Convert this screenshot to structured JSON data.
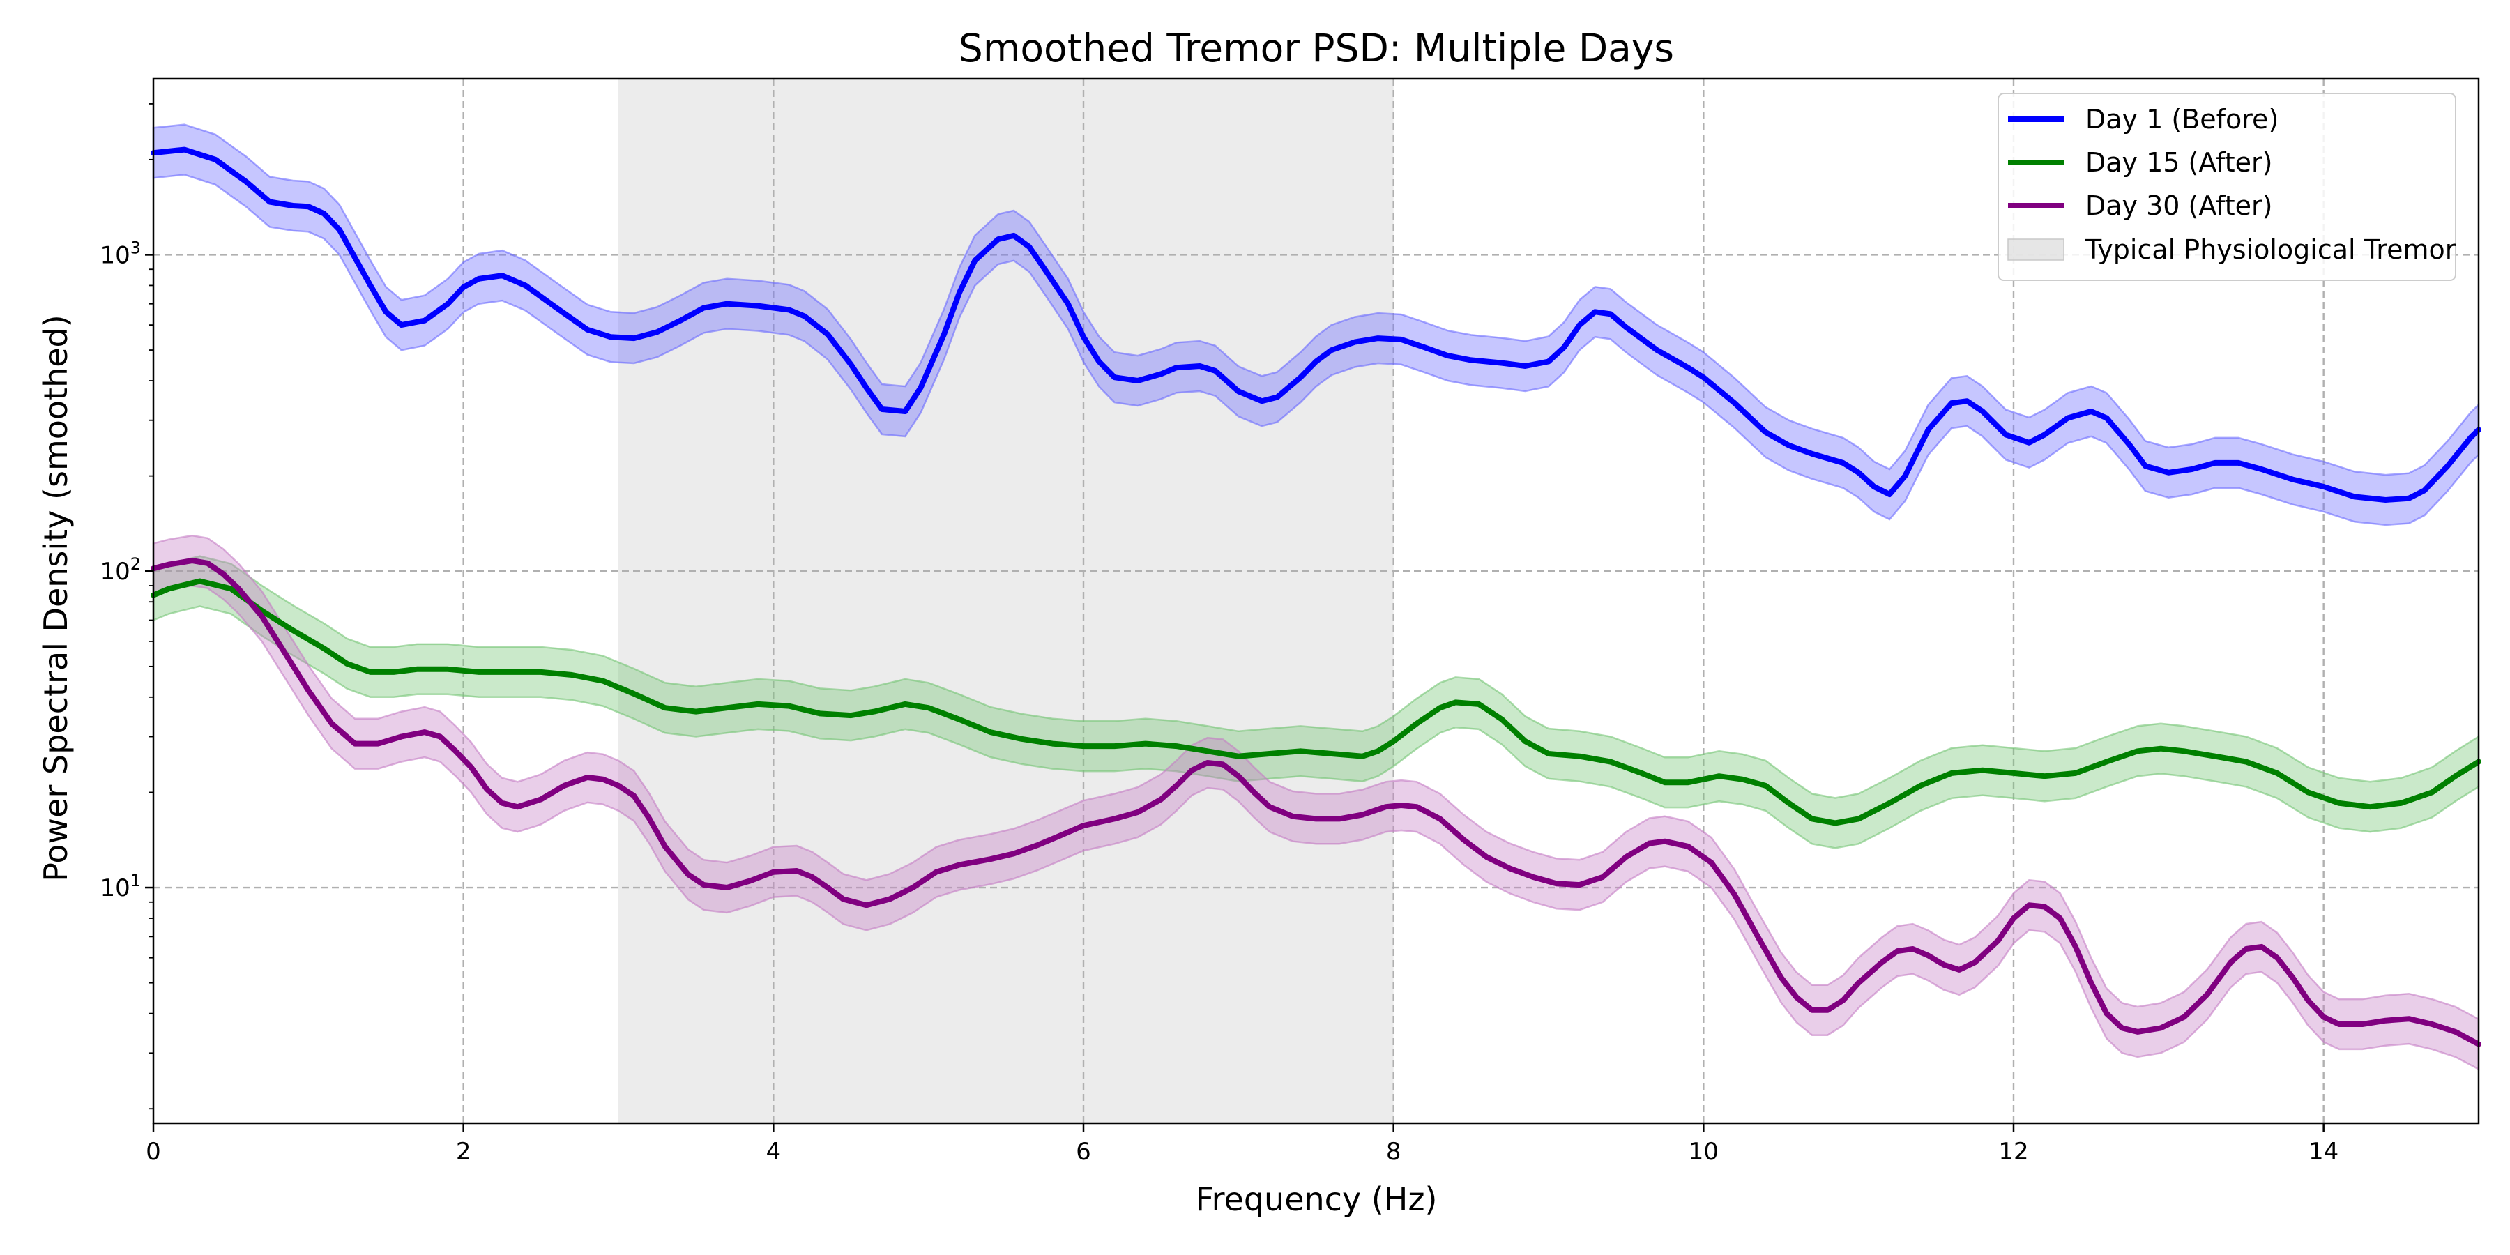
{
  "chart_data": {
    "type": "line",
    "title": "Smoothed Tremor PSD: Multiple Days",
    "xlabel": "Frequency (Hz)",
    "ylabel": "Power Spectral Density (smoothed)",
    "xlim": [
      0,
      15
    ],
    "ylim": [
      1.8,
      3600
    ],
    "yscale": "log",
    "grid": true,
    "legend_position": "top-right",
    "x_ticks": [
      0,
      2,
      4,
      6,
      8,
      10,
      12,
      14
    ],
    "x_tick_labels": [
      "0",
      "2",
      "4",
      "6",
      "8",
      "10",
      "12",
      "14"
    ],
    "y_ticks": [
      10,
      100,
      1000
    ],
    "y_tick_labels": [
      {
        "base": "10",
        "exp": "1"
      },
      {
        "base": "10",
        "exp": "2"
      },
      {
        "base": "10",
        "exp": "3"
      }
    ],
    "shaded_region": {
      "label": "Typical Physiological Tremor",
      "x_start": 3,
      "x_end": 8,
      "color": "#dcdcdc"
    },
    "band_ratio": 1.2,
    "series": [
      {
        "name": "Day 1 (Before)",
        "color": "#0000ff",
        "band_color": "#6a6aff",
        "points": [
          [
            0,
            2100
          ],
          [
            0.2,
            2150
          ],
          [
            0.4,
            2000
          ],
          [
            0.6,
            1700
          ],
          [
            0.75,
            1470
          ],
          [
            0.9,
            1430
          ],
          [
            1.0,
            1420
          ],
          [
            1.1,
            1350
          ],
          [
            1.2,
            1200
          ],
          [
            1.3,
            980
          ],
          [
            1.4,
            800
          ],
          [
            1.5,
            660
          ],
          [
            1.6,
            600
          ],
          [
            1.75,
            620
          ],
          [
            1.9,
            700
          ],
          [
            2.0,
            790
          ],
          [
            2.1,
            840
          ],
          [
            2.25,
            860
          ],
          [
            2.4,
            800
          ],
          [
            2.6,
            680
          ],
          [
            2.8,
            580
          ],
          [
            2.95,
            550
          ],
          [
            3.1,
            545
          ],
          [
            3.25,
            570
          ],
          [
            3.4,
            620
          ],
          [
            3.55,
            680
          ],
          [
            3.7,
            700
          ],
          [
            3.9,
            690
          ],
          [
            4.1,
            670
          ],
          [
            4.2,
            640
          ],
          [
            4.35,
            560
          ],
          [
            4.5,
            450
          ],
          [
            4.6,
            380
          ],
          [
            4.7,
            325
          ],
          [
            4.85,
            320
          ],
          [
            4.95,
            380
          ],
          [
            5.1,
            560
          ],
          [
            5.2,
            760
          ],
          [
            5.3,
            960
          ],
          [
            5.45,
            1120
          ],
          [
            5.55,
            1150
          ],
          [
            5.65,
            1060
          ],
          [
            5.75,
            900
          ],
          [
            5.9,
            700
          ],
          [
            6.0,
            550
          ],
          [
            6.1,
            460
          ],
          [
            6.2,
            410
          ],
          [
            6.35,
            400
          ],
          [
            6.5,
            420
          ],
          [
            6.6,
            440
          ],
          [
            6.75,
            445
          ],
          [
            6.85,
            430
          ],
          [
            7.0,
            370
          ],
          [
            7.15,
            345
          ],
          [
            7.25,
            355
          ],
          [
            7.4,
            410
          ],
          [
            7.5,
            460
          ],
          [
            7.6,
            500
          ],
          [
            7.75,
            530
          ],
          [
            7.9,
            545
          ],
          [
            8.05,
            540
          ],
          [
            8.2,
            510
          ],
          [
            8.35,
            480
          ],
          [
            8.5,
            465
          ],
          [
            8.7,
            455
          ],
          [
            8.85,
            445
          ],
          [
            9.0,
            460
          ],
          [
            9.1,
            510
          ],
          [
            9.2,
            600
          ],
          [
            9.3,
            660
          ],
          [
            9.4,
            650
          ],
          [
            9.5,
            590
          ],
          [
            9.7,
            500
          ],
          [
            9.9,
            440
          ],
          [
            10.0,
            410
          ],
          [
            10.2,
            340
          ],
          [
            10.4,
            275
          ],
          [
            10.55,
            250
          ],
          [
            10.7,
            235
          ],
          [
            10.9,
            220
          ],
          [
            11.0,
            205
          ],
          [
            11.1,
            185
          ],
          [
            11.2,
            175
          ],
          [
            11.3,
            200
          ],
          [
            11.45,
            280
          ],
          [
            11.6,
            340
          ],
          [
            11.7,
            345
          ],
          [
            11.8,
            320
          ],
          [
            11.95,
            270
          ],
          [
            12.1,
            255
          ],
          [
            12.2,
            270
          ],
          [
            12.35,
            305
          ],
          [
            12.5,
            320
          ],
          [
            12.6,
            305
          ],
          [
            12.75,
            250
          ],
          [
            12.85,
            215
          ],
          [
            13.0,
            205
          ],
          [
            13.15,
            210
          ],
          [
            13.3,
            220
          ],
          [
            13.45,
            220
          ],
          [
            13.6,
            210
          ],
          [
            13.8,
            195
          ],
          [
            14.0,
            185
          ],
          [
            14.2,
            172
          ],
          [
            14.4,
            168
          ],
          [
            14.55,
            170
          ],
          [
            14.65,
            180
          ],
          [
            14.8,
            215
          ],
          [
            14.95,
            265
          ],
          [
            15.0,
            280
          ]
        ]
      },
      {
        "name": "Day 15 (After)",
        "color": "#008000",
        "band_color": "#74c474",
        "points": [
          [
            0,
            84
          ],
          [
            0.1,
            88
          ],
          [
            0.3,
            93
          ],
          [
            0.5,
            88
          ],
          [
            0.7,
            75
          ],
          [
            0.9,
            65
          ],
          [
            1.1,
            57
          ],
          [
            1.25,
            51
          ],
          [
            1.4,
            48
          ],
          [
            1.55,
            48
          ],
          [
            1.7,
            49
          ],
          [
            1.9,
            49
          ],
          [
            2.1,
            48
          ],
          [
            2.3,
            48
          ],
          [
            2.5,
            48
          ],
          [
            2.7,
            47
          ],
          [
            2.9,
            45
          ],
          [
            3.1,
            41
          ],
          [
            3.3,
            37
          ],
          [
            3.5,
            36
          ],
          [
            3.7,
            37
          ],
          [
            3.9,
            38
          ],
          [
            4.1,
            37.5
          ],
          [
            4.3,
            35.5
          ],
          [
            4.5,
            35
          ],
          [
            4.65,
            36
          ],
          [
            4.85,
            38
          ],
          [
            5.0,
            37
          ],
          [
            5.2,
            34
          ],
          [
            5.4,
            31
          ],
          [
            5.6,
            29.5
          ],
          [
            5.8,
            28.5
          ],
          [
            6.0,
            28
          ],
          [
            6.2,
            28
          ],
          [
            6.4,
            28.5
          ],
          [
            6.6,
            28
          ],
          [
            6.8,
            27
          ],
          [
            7.0,
            26
          ],
          [
            7.2,
            26.5
          ],
          [
            7.4,
            27
          ],
          [
            7.6,
            26.5
          ],
          [
            7.8,
            26
          ],
          [
            7.9,
            27
          ],
          [
            8.0,
            29
          ],
          [
            8.15,
            33
          ],
          [
            8.3,
            37
          ],
          [
            8.4,
            38.5
          ],
          [
            8.55,
            38
          ],
          [
            8.7,
            34
          ],
          [
            8.85,
            29
          ],
          [
            9.0,
            26.5
          ],
          [
            9.2,
            26
          ],
          [
            9.4,
            25
          ],
          [
            9.6,
            23
          ],
          [
            9.75,
            21.5
          ],
          [
            9.9,
            21.5
          ],
          [
            10.0,
            22
          ],
          [
            10.1,
            22.5
          ],
          [
            10.25,
            22
          ],
          [
            10.4,
            21
          ],
          [
            10.55,
            18.5
          ],
          [
            10.7,
            16.5
          ],
          [
            10.85,
            16
          ],
          [
            11.0,
            16.5
          ],
          [
            11.2,
            18.5
          ],
          [
            11.4,
            21
          ],
          [
            11.6,
            23
          ],
          [
            11.8,
            23.5
          ],
          [
            12.0,
            23
          ],
          [
            12.2,
            22.5
          ],
          [
            12.4,
            23
          ],
          [
            12.6,
            25
          ],
          [
            12.8,
            27
          ],
          [
            12.95,
            27.5
          ],
          [
            13.1,
            27
          ],
          [
            13.3,
            26
          ],
          [
            13.5,
            25
          ],
          [
            13.7,
            23
          ],
          [
            13.9,
            20
          ],
          [
            14.1,
            18.5
          ],
          [
            14.3,
            18
          ],
          [
            14.5,
            18.5
          ],
          [
            14.7,
            20
          ],
          [
            14.85,
            22.5
          ],
          [
            15.0,
            25
          ]
        ]
      },
      {
        "name": "Day 30 (After)",
        "color": "#800080",
        "band_color": "#c47dc4",
        "points": [
          [
            0,
            102
          ],
          [
            0.1,
            105
          ],
          [
            0.25,
            108
          ],
          [
            0.35,
            106
          ],
          [
            0.45,
            98
          ],
          [
            0.55,
            88
          ],
          [
            0.7,
            72
          ],
          [
            0.85,
            55
          ],
          [
            1.0,
            42
          ],
          [
            1.15,
            33
          ],
          [
            1.3,
            28.5
          ],
          [
            1.45,
            28.5
          ],
          [
            1.6,
            30
          ],
          [
            1.75,
            31
          ],
          [
            1.85,
            30
          ],
          [
            1.95,
            27
          ],
          [
            2.05,
            24
          ],
          [
            2.15,
            20.5
          ],
          [
            2.25,
            18.5
          ],
          [
            2.35,
            18
          ],
          [
            2.5,
            19
          ],
          [
            2.65,
            21
          ],
          [
            2.8,
            22.3
          ],
          [
            2.9,
            22
          ],
          [
            3.0,
            21
          ],
          [
            3.1,
            19.5
          ],
          [
            3.2,
            16.5
          ],
          [
            3.3,
            13.5
          ],
          [
            3.45,
            11
          ],
          [
            3.55,
            10.2
          ],
          [
            3.7,
            10
          ],
          [
            3.85,
            10.5
          ],
          [
            4.0,
            11.2
          ],
          [
            4.15,
            11.3
          ],
          [
            4.25,
            10.8
          ],
          [
            4.35,
            10
          ],
          [
            4.45,
            9.2
          ],
          [
            4.6,
            8.8
          ],
          [
            4.75,
            9.2
          ],
          [
            4.9,
            10
          ],
          [
            5.05,
            11.2
          ],
          [
            5.2,
            11.8
          ],
          [
            5.4,
            12.3
          ],
          [
            5.55,
            12.8
          ],
          [
            5.7,
            13.6
          ],
          [
            5.85,
            14.6
          ],
          [
            6.0,
            15.7
          ],
          [
            6.2,
            16.5
          ],
          [
            6.35,
            17.3
          ],
          [
            6.5,
            19
          ],
          [
            6.6,
            21
          ],
          [
            6.7,
            23.5
          ],
          [
            6.8,
            24.8
          ],
          [
            6.9,
            24.5
          ],
          [
            7.0,
            22.5
          ],
          [
            7.1,
            20
          ],
          [
            7.2,
            18
          ],
          [
            7.35,
            16.8
          ],
          [
            7.5,
            16.5
          ],
          [
            7.65,
            16.5
          ],
          [
            7.8,
            17
          ],
          [
            7.95,
            18
          ],
          [
            8.05,
            18.2
          ],
          [
            8.15,
            18
          ],
          [
            8.3,
            16.5
          ],
          [
            8.45,
            14.2
          ],
          [
            8.6,
            12.5
          ],
          [
            8.75,
            11.5
          ],
          [
            8.9,
            10.8
          ],
          [
            9.05,
            10.3
          ],
          [
            9.2,
            10.2
          ],
          [
            9.35,
            10.8
          ],
          [
            9.5,
            12.5
          ],
          [
            9.65,
            13.8
          ],
          [
            9.75,
            14
          ],
          [
            9.9,
            13.5
          ],
          [
            10.05,
            12
          ],
          [
            10.2,
            9.5
          ],
          [
            10.35,
            7
          ],
          [
            10.5,
            5.2
          ],
          [
            10.6,
            4.5
          ],
          [
            10.7,
            4.1
          ],
          [
            10.8,
            4.1
          ],
          [
            10.9,
            4.4
          ],
          [
            11.0,
            5
          ],
          [
            11.15,
            5.8
          ],
          [
            11.25,
            6.3
          ],
          [
            11.35,
            6.4
          ],
          [
            11.45,
            6.1
          ],
          [
            11.55,
            5.7
          ],
          [
            11.65,
            5.5
          ],
          [
            11.75,
            5.8
          ],
          [
            11.9,
            6.8
          ],
          [
            12.0,
            8
          ],
          [
            12.1,
            8.8
          ],
          [
            12.2,
            8.7
          ],
          [
            12.3,
            8
          ],
          [
            12.4,
            6.5
          ],
          [
            12.5,
            5
          ],
          [
            12.6,
            4
          ],
          [
            12.7,
            3.6
          ],
          [
            12.8,
            3.5
          ],
          [
            12.95,
            3.6
          ],
          [
            13.1,
            3.9
          ],
          [
            13.25,
            4.6
          ],
          [
            13.4,
            5.8
          ],
          [
            13.5,
            6.4
          ],
          [
            13.6,
            6.5
          ],
          [
            13.7,
            6
          ],
          [
            13.8,
            5.2
          ],
          [
            13.9,
            4.4
          ],
          [
            14.0,
            3.9
          ],
          [
            14.1,
            3.7
          ],
          [
            14.25,
            3.7
          ],
          [
            14.4,
            3.8
          ],
          [
            14.55,
            3.85
          ],
          [
            14.7,
            3.7
          ],
          [
            14.85,
            3.5
          ],
          [
            15.0,
            3.2
          ]
        ]
      }
    ]
  }
}
